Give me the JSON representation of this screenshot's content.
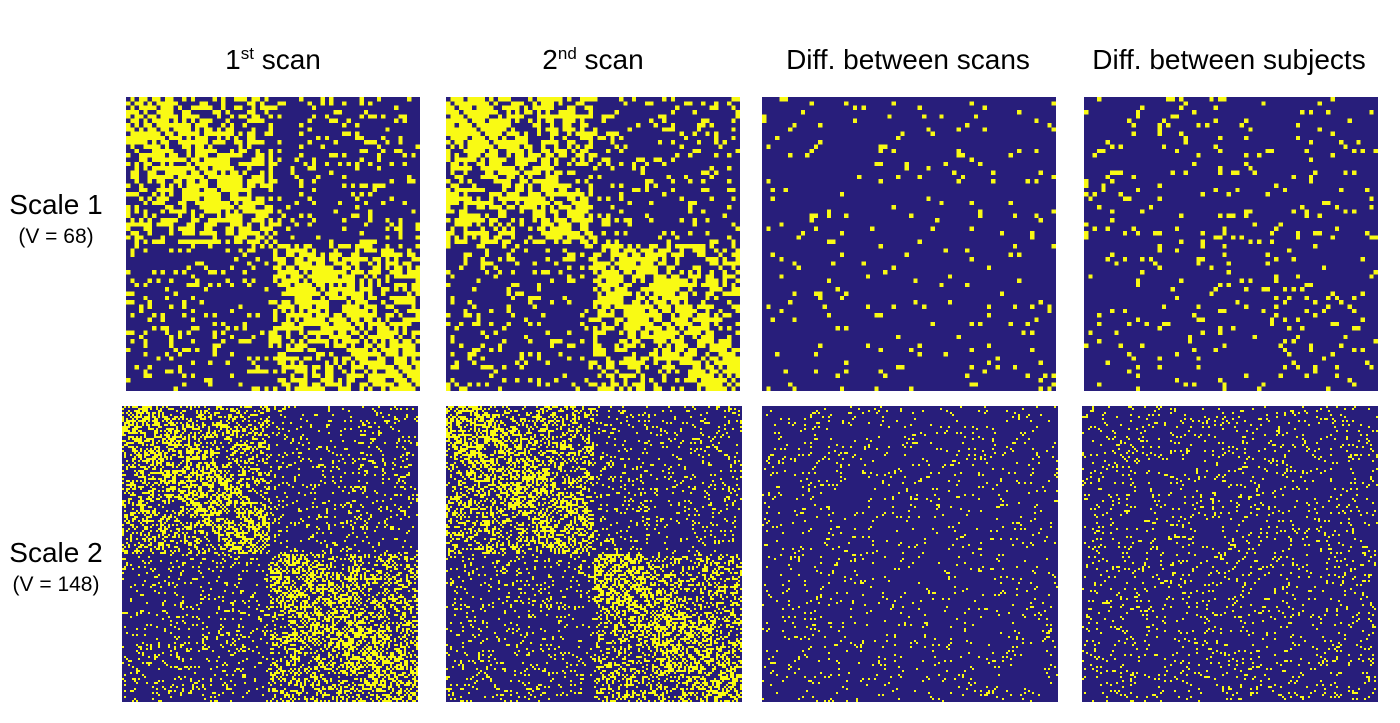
{
  "chart_data": {
    "type": "heatmap",
    "colors": {
      "off": "#281e7b",
      "on": "#f9fa14",
      "background": "#ffffff"
    },
    "columns": [
      {
        "sup_prefix": "1",
        "sup": "st",
        "label": " scan"
      },
      {
        "sup_prefix": "2",
        "sup": "nd",
        "label": " scan"
      },
      {
        "sup_prefix": "",
        "sup": "",
        "label": "Diff. between scans"
      },
      {
        "sup_prefix": "",
        "sup": "",
        "label": "Diff. between subjects"
      }
    ],
    "rows": [
      {
        "label": "Scale 1",
        "sublabel": "(V = 68)",
        "size": 68
      },
      {
        "label": "Scale 2",
        "sublabel": "(V = 148)",
        "size": 148
      }
    ],
    "panels": [
      {
        "row": 0,
        "col": 0,
        "kind": "connectivity",
        "density": 0.32
      },
      {
        "row": 0,
        "col": 1,
        "kind": "connectivity",
        "density": 0.32
      },
      {
        "row": 0,
        "col": 2,
        "kind": "difference",
        "density": 0.045
      },
      {
        "row": 0,
        "col": 3,
        "kind": "difference",
        "density": 0.075
      },
      {
        "row": 1,
        "col": 0,
        "kind": "connectivity",
        "density": 0.22
      },
      {
        "row": 1,
        "col": 1,
        "kind": "connectivity",
        "density": 0.22
      },
      {
        "row": 1,
        "col": 2,
        "kind": "difference",
        "density": 0.05
      },
      {
        "row": 1,
        "col": 3,
        "kind": "difference",
        "density": 0.08
      }
    ]
  }
}
